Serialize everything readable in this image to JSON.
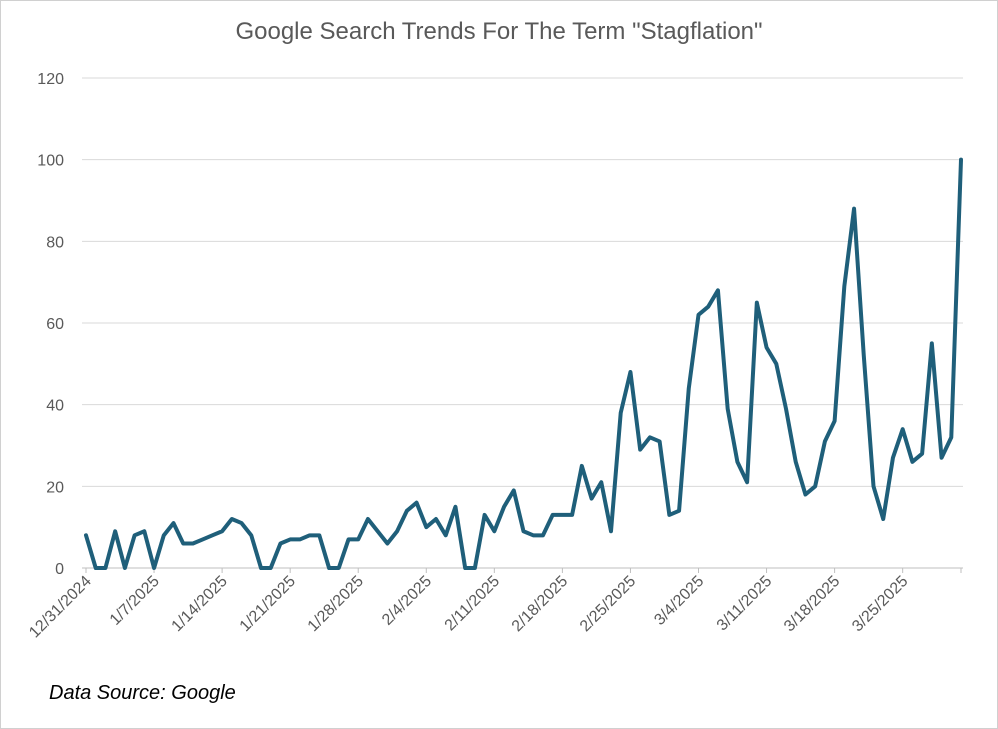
{
  "chart_data": {
    "type": "line",
    "title": "Google Search Trends For The Term \"Stagflation\"",
    "source_note": "Data Source:  Google",
    "xlabel": "",
    "ylabel": "",
    "ylim": [
      0,
      120
    ],
    "yticks": [
      0,
      20,
      40,
      60,
      80,
      100,
      120
    ],
    "xtick_labels": [
      "12/31/2024",
      "1/7/2025",
      "1/14/2025",
      "1/21/2025",
      "1/28/2025",
      "2/4/2025",
      "2/11/2025",
      "2/18/2025",
      "2/25/2025",
      "3/4/2025",
      "3/11/2025",
      "3/18/2025",
      "3/25/2025"
    ],
    "grid": true,
    "line_color": "#1f5f7a",
    "series": [
      {
        "name": "",
        "x": [
          "2024-12-31",
          "2025-01-01",
          "2025-01-02",
          "2025-01-03",
          "2025-01-04",
          "2025-01-05",
          "2025-01-06",
          "2025-01-07",
          "2025-01-08",
          "2025-01-09",
          "2025-01-10",
          "2025-01-11",
          "2025-01-12",
          "2025-01-13",
          "2025-01-14",
          "2025-01-15",
          "2025-01-16",
          "2025-01-17",
          "2025-01-18",
          "2025-01-19",
          "2025-01-20",
          "2025-01-21",
          "2025-01-22",
          "2025-01-23",
          "2025-01-24",
          "2025-01-25",
          "2025-01-26",
          "2025-01-27",
          "2025-01-28",
          "2025-01-29",
          "2025-01-30",
          "2025-01-31",
          "2025-02-01",
          "2025-02-02",
          "2025-02-03",
          "2025-02-04",
          "2025-02-05",
          "2025-02-06",
          "2025-02-07",
          "2025-02-08",
          "2025-02-09",
          "2025-02-10",
          "2025-02-11",
          "2025-02-12",
          "2025-02-13",
          "2025-02-14",
          "2025-02-15",
          "2025-02-16",
          "2025-02-17",
          "2025-02-18",
          "2025-02-19",
          "2025-02-20",
          "2025-02-21",
          "2025-02-22",
          "2025-02-23",
          "2025-02-24",
          "2025-02-25",
          "2025-02-26",
          "2025-02-27",
          "2025-02-28",
          "2025-03-01",
          "2025-03-02",
          "2025-03-03",
          "2025-03-04",
          "2025-03-05",
          "2025-03-06",
          "2025-03-07",
          "2025-03-08",
          "2025-03-09",
          "2025-03-10",
          "2025-03-11",
          "2025-03-12",
          "2025-03-13",
          "2025-03-14",
          "2025-03-15",
          "2025-03-16",
          "2025-03-17",
          "2025-03-18",
          "2025-03-19",
          "2025-03-20",
          "2025-03-21",
          "2025-03-22",
          "2025-03-23",
          "2025-03-24",
          "2025-03-25",
          "2025-03-26",
          "2025-03-27",
          "2025-03-28",
          "2025-03-29",
          "2025-03-30",
          "2025-03-31"
        ],
        "values": [
          8,
          0,
          0,
          9,
          0,
          8,
          9,
          0,
          8,
          11,
          6,
          6,
          7,
          8,
          9,
          12,
          11,
          8,
          0,
          0,
          6,
          7,
          7,
          8,
          8,
          0,
          0,
          7,
          7,
          12,
          9,
          6,
          9,
          14,
          16,
          10,
          12,
          8,
          15,
          0,
          0,
          13,
          9,
          15,
          19,
          9,
          8,
          8,
          13,
          13,
          13,
          25,
          17,
          21,
          9,
          38,
          48,
          29,
          32,
          31,
          13,
          14,
          44,
          62,
          64,
          68,
          39,
          26,
          21,
          65,
          54,
          50,
          39,
          26,
          18,
          20,
          31,
          36,
          69,
          88,
          52,
          20,
          12,
          27,
          34,
          26,
          28,
          55,
          27,
          32,
          100
        ]
      }
    ]
  }
}
